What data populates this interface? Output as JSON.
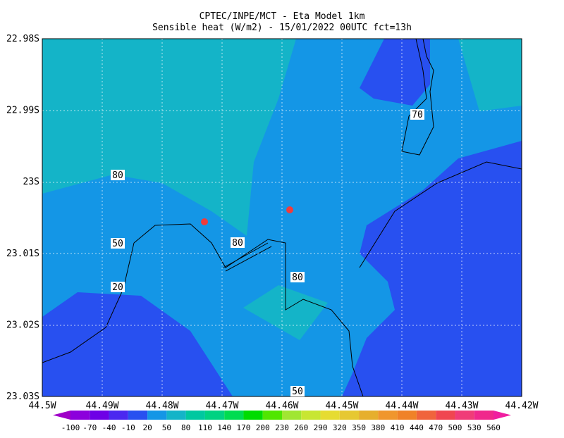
{
  "header": {
    "title": "CPTEC/INPE/MCT -  Eta Model 1km",
    "subtitle": "Sensible heat (W/m2) - 15/01/2022 00UTC fct=13h"
  },
  "map": {
    "lat_ticks": [
      "22.98S",
      "22.99S",
      "23S",
      "23.01S",
      "23.02S",
      "23.03S"
    ],
    "lon_ticks": [
      "44.5W",
      "44.49W",
      "44.48W",
      "44.47W",
      "44.46W",
      "44.45W",
      "44.44W",
      "44.43W",
      "44.42W"
    ],
    "contour_labels": [
      "80",
      "50",
      "20",
      "80",
      "80",
      "50",
      "70"
    ]
  },
  "colorbar": {
    "levels": [
      -100,
      -70,
      -40,
      -10,
      20,
      50,
      80,
      110,
      140,
      170,
      200,
      230,
      260,
      290,
      320,
      350,
      380,
      410,
      440,
      470,
      500,
      530,
      560
    ],
    "colors": [
      "#a000c8",
      "#8c00dc",
      "#6e00e6",
      "#4b28f0",
      "#2850f0",
      "#1496e6",
      "#14b4c8",
      "#00c8a0",
      "#00d282",
      "#00dc50",
      "#00dc00",
      "#50e600",
      "#a0e632",
      "#c8e632",
      "#e6dc32",
      "#e6c832",
      "#e6af2d",
      "#f0962d",
      "#f08228",
      "#f0643c",
      "#f04650",
      "#f03c78",
      "#f0288c",
      "#f01ea0"
    ]
  }
}
